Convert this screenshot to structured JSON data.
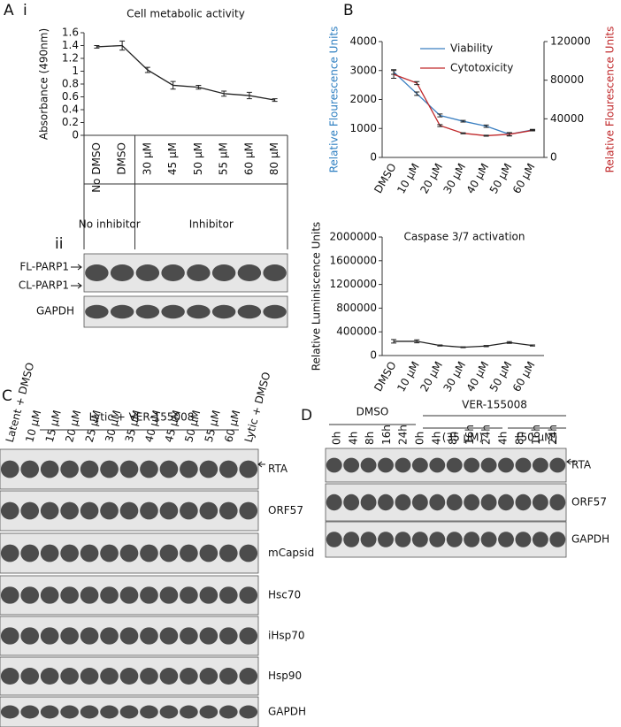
{
  "panels": {
    "a": "A",
    "a_i": "i",
    "a_ii": "ii",
    "b": "B",
    "c": "C",
    "d": "D"
  },
  "chart_data": [
    {
      "type": "line",
      "title": "Cell metabolic activity",
      "ylabel": "Absorbance (490nm)",
      "categories": [
        "No DMSO",
        "DMSO",
        "30 µM",
        "45 µM",
        "50 µM",
        "55 µM",
        "60 µM",
        "80 µM"
      ],
      "values": [
        1.38,
        1.4,
        1.02,
        0.78,
        0.75,
        0.65,
        0.62,
        0.55
      ],
      "errors": [
        0.02,
        0.07,
        0.04,
        0.06,
        0.03,
        0.04,
        0.05,
        0.02
      ],
      "color": "#222222",
      "ylim": [
        0,
        1.6
      ],
      "yticks": [
        0,
        0.2,
        0.4,
        0.6,
        0.8,
        1,
        1.2,
        1.4,
        1.6
      ],
      "groups": [
        "No inhibitor",
        "Inhibitor"
      ]
    },
    {
      "type": "line",
      "ylabel": "Relative Flourescence Units",
      "y2label": "Relative Flourescence Units",
      "ylabel_color": "#2e7fc1",
      "y2label_color": "#c0292b",
      "categories": [
        "DMSO",
        "10 µM",
        "20 µM",
        "30 µM",
        "40 µM",
        "50 µM",
        "60 µM"
      ],
      "series": [
        {
          "name": "Viability",
          "color": "#3a7fc1",
          "values": [
            2950,
            2200,
            1450,
            1250,
            1080,
            800,
            950
          ],
          "errors": [
            80,
            60,
            50,
            30,
            40,
            60,
            20
          ]
        },
        {
          "name": "Cytotoxicity",
          "color": "#c0292b",
          "axis": "y2",
          "values": [
            86000,
            77000,
            33000,
            25000,
            22500,
            24000,
            28000
          ],
          "errors": [
            4000,
            1500,
            1000,
            500,
            500,
            1500,
            500
          ]
        }
      ],
      "ylim": [
        0,
        4000
      ],
      "yticks": [
        0,
        1000,
        2000,
        3000,
        4000
      ],
      "y2lim": [
        0,
        120000
      ],
      "y2ticks": [
        0,
        40000,
        80000,
        120000
      ]
    },
    {
      "type": "line",
      "title": "Caspase 3/7 activation",
      "ylabel": "Relative Luminiscence Units",
      "categories": [
        "DMSO",
        "10 µM",
        "20 µM",
        "30 µM",
        "40 µM",
        "50 µM",
        "60 µM"
      ],
      "values": [
        240000,
        240000,
        170000,
        140000,
        160000,
        220000,
        170000
      ],
      "errors": [
        30000,
        25000,
        10000,
        8000,
        10000,
        15000,
        10000
      ],
      "color": "#222222",
      "ylim": [
        0,
        2000000
      ],
      "yticks": [
        0,
        400000,
        800000,
        1200000,
        1600000,
        2000000
      ]
    }
  ],
  "blot_a": {
    "rows": [
      "FL-PARP1",
      "CL-PARP1",
      "GAPDH"
    ]
  },
  "blot_c": {
    "group": "Lytic + VER-155008",
    "lanes": [
      "Latent + DMSO",
      "10 µM",
      "15 µM",
      "20 µM",
      "25 µM",
      "30 µM",
      "35 µM",
      "40 µM",
      "45 µM",
      "50 µM",
      "55 µM",
      "60 µM",
      "Lytic + DMSO"
    ],
    "rows": [
      "RTA",
      "ORF57",
      "mCapsid",
      "Hsc70",
      "iHsp70",
      "Hsp90",
      "GAPDH"
    ]
  },
  "blot_d": {
    "groups": [
      "DMSO",
      "VER-155008"
    ],
    "subgroups": [
      "(35 µM)",
      "(50 µM)"
    ],
    "lanes": [
      "0h",
      "4h",
      "8h",
      "16h",
      "24h",
      "0h",
      "4h",
      "8h",
      "16h",
      "24h",
      "4h",
      "8h",
      "16h",
      "24h"
    ],
    "rows": [
      "RTA",
      "ORF57",
      "GAPDH"
    ]
  }
}
